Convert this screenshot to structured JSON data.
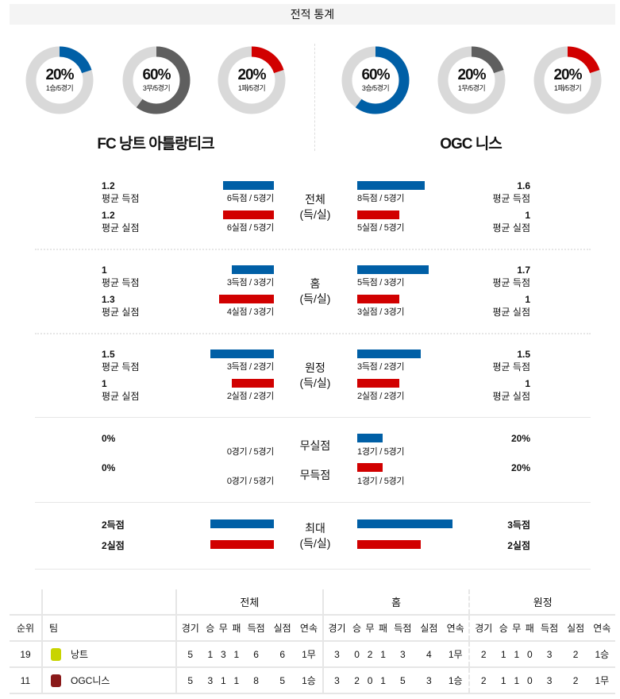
{
  "title": "전적 통계",
  "colors": {
    "blue": "#005fa6",
    "red": "#d10000",
    "gray": "#5f5f5f",
    "track": "#d9d9d9"
  },
  "home": {
    "name": "FC 낭트 아틀랑티크",
    "donuts": [
      {
        "pct": "20%",
        "value": 20,
        "sub": "1승/5경기",
        "color": "blue"
      },
      {
        "pct": "60%",
        "value": 60,
        "sub": "3무/5경기",
        "color": "gray"
      },
      {
        "pct": "20%",
        "value": 20,
        "sub": "1패/5경기",
        "color": "red"
      }
    ]
  },
  "away": {
    "name": "OGC 니스",
    "donuts": [
      {
        "pct": "60%",
        "value": 60,
        "sub": "3승/5경기",
        "color": "blue"
      },
      {
        "pct": "20%",
        "value": 20,
        "sub": "1무/5경기",
        "color": "gray"
      },
      {
        "pct": "20%",
        "value": 20,
        "sub": "1패/5경기",
        "color": "red"
      }
    ]
  },
  "sections": [
    {
      "label1": "전체",
      "label2": "(득/실)",
      "rows": [
        {
          "l_val": "1.2",
          "l_lbl": "평균 득점",
          "l_cap": "6득점 / 5경기",
          "l_bar": 1.2,
          "r_val": "1.6",
          "r_lbl": "평균 득점",
          "r_cap": "8득점 / 5경기",
          "r_bar": 1.6,
          "color": "blue"
        },
        {
          "l_val": "1.2",
          "l_lbl": "평균 실점",
          "l_cap": "6실점 / 5경기",
          "l_bar": 1.2,
          "r_val": "1",
          "r_lbl": "평균 실점",
          "r_cap": "5실점 / 5경기",
          "r_bar": 1.0,
          "color": "red"
        }
      ]
    },
    {
      "label1": "홈",
      "label2": "(득/실)",
      "rows": [
        {
          "l_val": "1",
          "l_lbl": "평균 득점",
          "l_cap": "3득점 / 3경기",
          "l_bar": 1.0,
          "r_val": "1.7",
          "r_lbl": "평균 득점",
          "r_cap": "5득점 / 3경기",
          "r_bar": 1.7,
          "color": "blue"
        },
        {
          "l_val": "1.3",
          "l_lbl": "평균 실점",
          "l_cap": "4실점 / 3경기",
          "l_bar": 1.3,
          "r_val": "1",
          "r_lbl": "평균 실점",
          "r_cap": "3실점 / 3경기",
          "r_bar": 1.0,
          "color": "red"
        }
      ]
    },
    {
      "label1": "원정",
      "label2": "(득/실)",
      "rows": [
        {
          "l_val": "1.5",
          "l_lbl": "평균 득점",
          "l_cap": "3득점 / 2경기",
          "l_bar": 1.5,
          "r_val": "1.5",
          "r_lbl": "평균 득점",
          "r_cap": "3득점 / 2경기",
          "r_bar": 1.5,
          "color": "blue"
        },
        {
          "l_val": "1",
          "l_lbl": "평균 실점",
          "l_cap": "2실점 / 2경기",
          "l_bar": 1.0,
          "r_val": "1",
          "r_lbl": "평균 실점",
          "r_cap": "2실점 / 2경기",
          "r_bar": 1.0,
          "color": "red"
        }
      ]
    }
  ],
  "clean": [
    {
      "label": "무실점",
      "l_val": "0%",
      "l_cap": "0경기 / 5경기",
      "l_bar": 0,
      "r_val": "20%",
      "r_cap": "1경기 / 5경기",
      "r_bar": 20,
      "color": "blue"
    },
    {
      "label": "무득점",
      "l_val": "0%",
      "l_cap": "0경기 / 5경기",
      "l_bar": 0,
      "r_val": "20%",
      "r_cap": "1경기 / 5경기",
      "r_bar": 20,
      "color": "red"
    }
  ],
  "max": {
    "label1": "최대",
    "label2": "(득/실)",
    "rows": [
      {
        "l_val": "2득점",
        "l_bar": 2,
        "r_val": "3득점",
        "r_bar": 3,
        "color": "blue"
      },
      {
        "l_val": "2실점",
        "l_bar": 2,
        "r_val": "2실점",
        "r_bar": 2,
        "color": "red"
      }
    ]
  },
  "table": {
    "groups": [
      "전체",
      "홈",
      "원정"
    ],
    "rank_header": "순위",
    "team_header": "팀",
    "cols": [
      "경기",
      "승",
      "무",
      "패",
      "득점",
      "실점",
      "연속"
    ],
    "rows": [
      {
        "rank": "19",
        "team": "낭트",
        "logo": "#c8d400",
        "cells": [
          "5",
          "1",
          "3",
          "1",
          "6",
          "6",
          "1무",
          "3",
          "0",
          "2",
          "1",
          "3",
          "4",
          "1무",
          "2",
          "1",
          "1",
          "0",
          "3",
          "2",
          "1승"
        ]
      },
      {
        "rank": "11",
        "team": "OGC니스",
        "logo": "#8a1a1a",
        "cells": [
          "5",
          "3",
          "1",
          "1",
          "8",
          "5",
          "1승",
          "3",
          "2",
          "0",
          "1",
          "5",
          "3",
          "1승",
          "2",
          "1",
          "1",
          "0",
          "3",
          "2",
          "1무"
        ]
      }
    ]
  }
}
